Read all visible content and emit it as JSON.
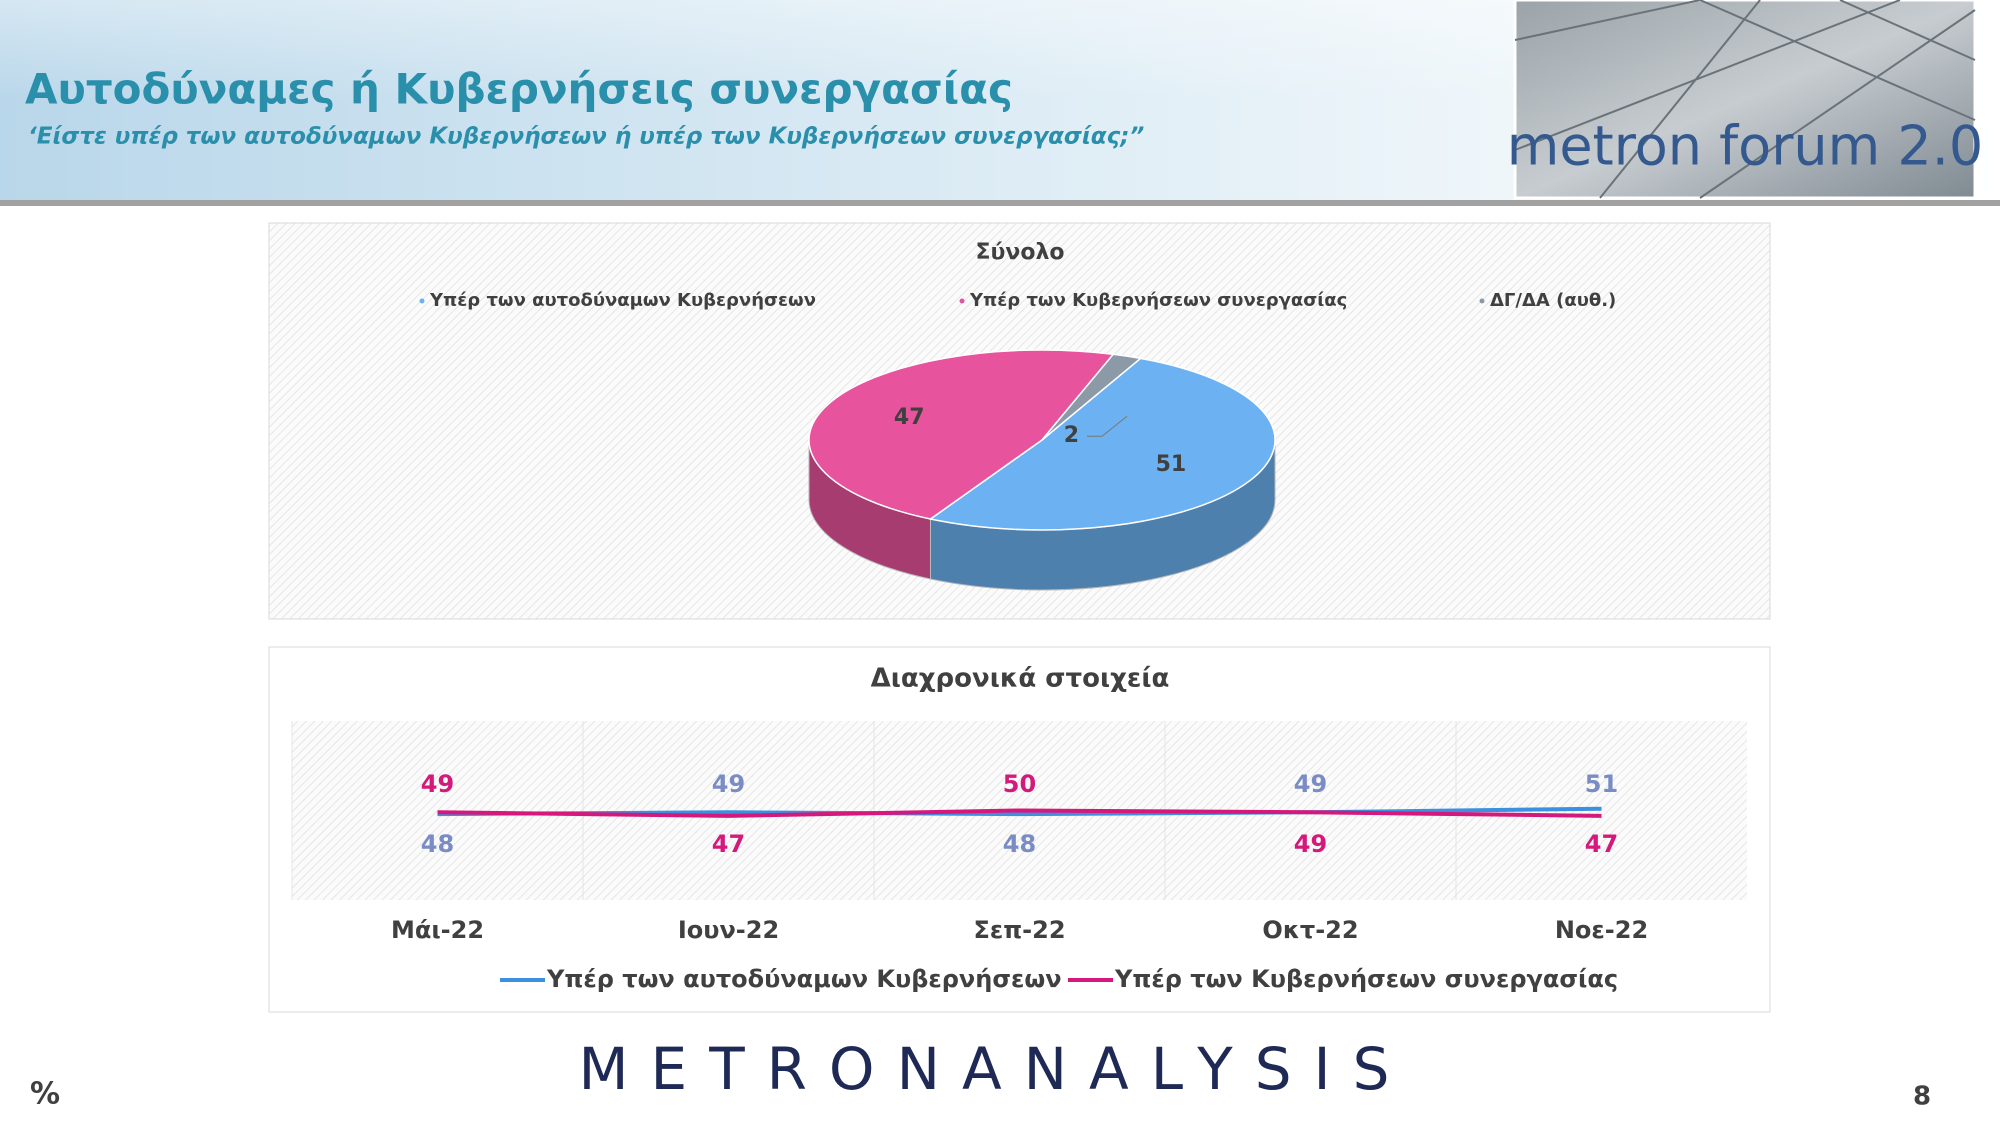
{
  "header": {
    "title": "Αυτοδύναμες ή Κυβερνήσεις συνεργασίας",
    "subtitle": "‘Είστε υπέρ των αυτοδύναμων Κυβερνήσεων ή υπέρ των Κυβερνήσεων συνεργασίας;”",
    "logo": "metron forum 2.0"
  },
  "chart_data": [
    {
      "type": "pie",
      "title": "Σύνολο",
      "categories": [
        "Υπέρ των αυτοδύναμων Κυβερνήσεων",
        "Υπέρ των Κυβερνήσεων συνεργασίας",
        "ΔΓ/ΔΑ (αυθ.)"
      ],
      "values": [
        51,
        47,
        2
      ],
      "colors": [
        "#6cb2f2",
        "#e8539d",
        "#8c99a6"
      ]
    },
    {
      "type": "line",
      "title": "Διαχρονικά στοιχεία",
      "categories": [
        "Μάι-22",
        "Ιουν-22",
        "Σεπ-22",
        "Οκτ-22",
        "Νοε-22"
      ],
      "series": [
        {
          "name": "Υπέρ των αυτοδύναμων Κυβερνήσεων",
          "color": "#3d8fe0",
          "label_color": "#7a8cc6",
          "values": [
            48,
            49,
            48,
            49,
            51
          ]
        },
        {
          "name": "Υπέρ των Κυβερνήσεων συνεργασίας",
          "color": "#d4187c",
          "label_color": "#d4187c",
          "values": [
            49,
            47,
            50,
            49,
            47
          ]
        }
      ],
      "ylim": [
        0,
        100
      ]
    }
  ],
  "footer": {
    "unit": "%",
    "brand": "METRONANALYSIS",
    "page": 8
  }
}
